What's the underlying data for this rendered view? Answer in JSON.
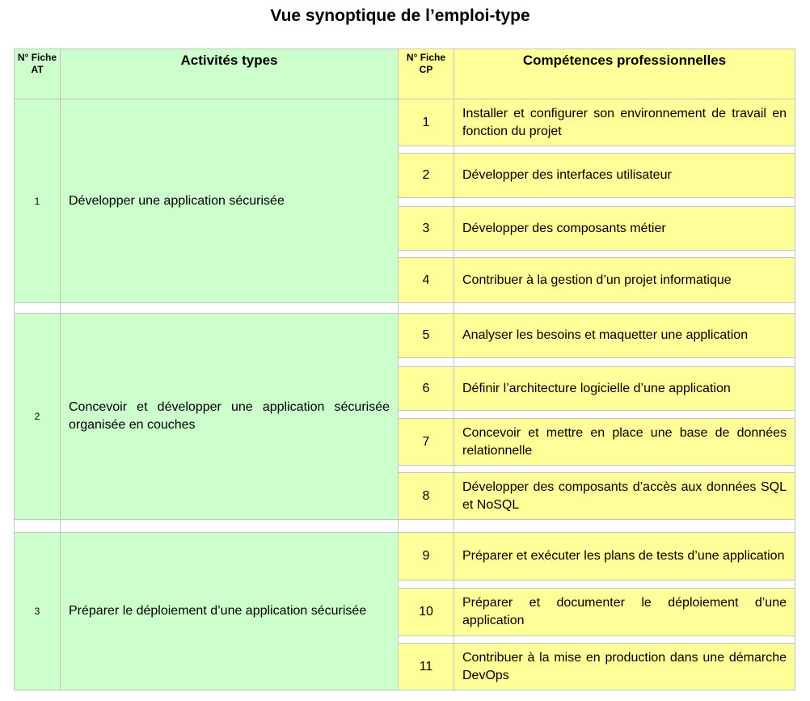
{
  "title": "Vue synoptique de l’emploi-type",
  "headers": {
    "fiche_at": "N° Fiche AT",
    "activites": "Activités types",
    "fiche_cp": "N° Fiche CP",
    "competences": "Compétences professionnelles"
  },
  "activities": [
    {
      "number": "1",
      "label": "Développer une application sécurisée",
      "competences": [
        {
          "number": "1",
          "label": "Installer et configurer son environnement de travail en fonction du projet"
        },
        {
          "number": "2",
          "label": "Développer des interfaces utilisateur"
        },
        {
          "number": "3",
          "label": "Développer des composants métier"
        },
        {
          "number": "4",
          "label": "Contribuer à la gestion d’un projet informatique"
        }
      ]
    },
    {
      "number": "2",
      "label": "Concevoir et développer une application sécurisée organisée en couches",
      "competences": [
        {
          "number": "5",
          "label": "Analyser les besoins et maquetter une application"
        },
        {
          "number": "6",
          "label": "Définir l’architecture logicielle d’une application"
        },
        {
          "number": "7",
          "label": "Concevoir et mettre en place une base de données relationnelle"
        },
        {
          "number": "8",
          "label": "Développer des composants d’accès aux données SQL et NoSQL"
        }
      ]
    },
    {
      "number": "3",
      "label": "Préparer le déploiement d’une application sécurisée",
      "competences": [
        {
          "number": "9",
          "label": "Préparer et exécuter les plans de tests d’une application"
        },
        {
          "number": "10",
          "label": "Préparer et documenter le déploiement d’une application"
        },
        {
          "number": "11",
          "label": "Contribuer à la mise en production dans une démarche DevOps"
        }
      ]
    }
  ]
}
